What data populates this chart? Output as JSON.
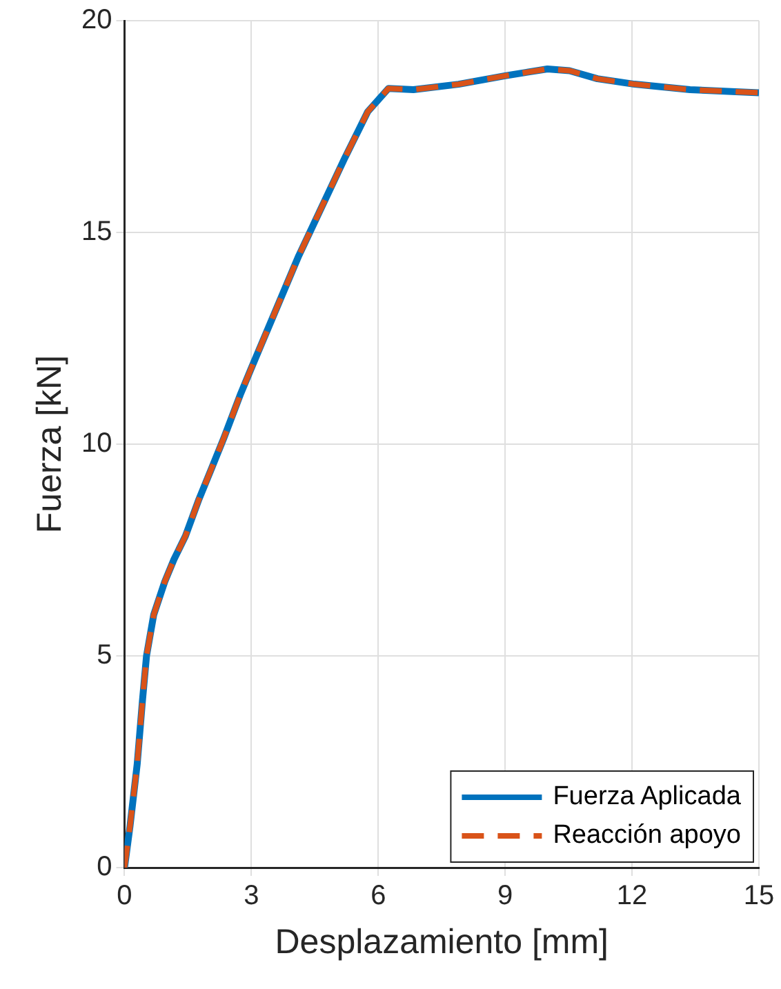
{
  "chart_data": {
    "type": "line",
    "xlabel": "Desplazamiento [mm]",
    "ylabel": "Fuerza [kN]",
    "x": [
      0,
      0.13,
      0.3,
      0.42,
      0.52,
      0.69,
      0.95,
      1.17,
      1.44,
      1.76,
      2.03,
      2.35,
      2.75,
      3.0,
      4.12,
      5.2,
      5.75,
      6.24,
      6.83,
      7.9,
      9.0,
      10.0,
      10.52,
      11.18,
      12.06,
      13.37,
      15
    ],
    "series": [
      {
        "name": "Fuerza Aplicada",
        "color": "#0072bd",
        "line_style": "solid",
        "values": [
          0,
          0.98,
          2.45,
          3.9,
          5.0,
          5.97,
          6.75,
          7.28,
          7.83,
          8.7,
          9.36,
          10.15,
          11.2,
          11.8,
          14.45,
          16.74,
          17.85,
          18.4,
          18.37,
          18.5,
          18.7,
          18.86,
          18.82,
          18.63,
          18.5,
          18.37,
          18.3
        ]
      },
      {
        "name": "Reacción apoyo",
        "color": "#d95319",
        "line_style": "dashed",
        "values": [
          0,
          0.98,
          2.45,
          3.9,
          5.0,
          5.97,
          6.75,
          7.28,
          7.83,
          8.7,
          9.36,
          10.15,
          11.2,
          11.8,
          14.45,
          16.74,
          17.85,
          18.4,
          18.37,
          18.5,
          18.7,
          18.86,
          18.82,
          18.63,
          18.5,
          18.37,
          18.3
        ]
      }
    ],
    "xlim": [
      0,
      15
    ],
    "xticks": [
      0,
      3,
      6,
      9,
      12,
      15
    ],
    "ylim": [
      0,
      20
    ],
    "yticks": [
      0,
      5,
      10,
      15,
      20
    ],
    "grid": true,
    "legend": "bottom right",
    "marker": "none"
  }
}
